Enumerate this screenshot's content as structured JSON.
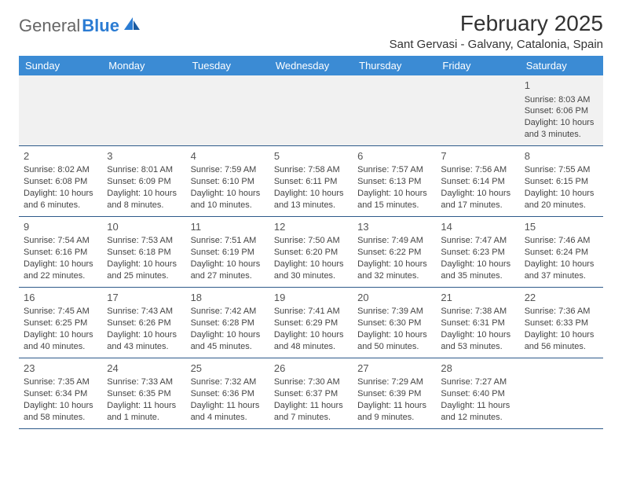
{
  "logo": {
    "text1": "General",
    "text2": "Blue"
  },
  "title": "February 2025",
  "location": "Sant Gervasi - Galvany, Catalonia, Spain",
  "dayHeaders": [
    "Sunday",
    "Monday",
    "Tuesday",
    "Wednesday",
    "Thursday",
    "Friday",
    "Saturday"
  ],
  "colors": {
    "headerBg": "#3b8bd4",
    "headerText": "#ffffff",
    "rule": "#2e5a8a",
    "firstRowBg": "#f1f1f1",
    "text": "#444444",
    "logoAccent": "#2b7cd3"
  },
  "weeks": [
    [
      null,
      null,
      null,
      null,
      null,
      null,
      {
        "n": "1",
        "sunrise": "8:03 AM",
        "sunset": "6:06 PM",
        "daylight": "10 hours and 3 minutes."
      }
    ],
    [
      {
        "n": "2",
        "sunrise": "8:02 AM",
        "sunset": "6:08 PM",
        "daylight": "10 hours and 6 minutes."
      },
      {
        "n": "3",
        "sunrise": "8:01 AM",
        "sunset": "6:09 PM",
        "daylight": "10 hours and 8 minutes."
      },
      {
        "n": "4",
        "sunrise": "7:59 AM",
        "sunset": "6:10 PM",
        "daylight": "10 hours and 10 minutes."
      },
      {
        "n": "5",
        "sunrise": "7:58 AM",
        "sunset": "6:11 PM",
        "daylight": "10 hours and 13 minutes."
      },
      {
        "n": "6",
        "sunrise": "7:57 AM",
        "sunset": "6:13 PM",
        "daylight": "10 hours and 15 minutes."
      },
      {
        "n": "7",
        "sunrise": "7:56 AM",
        "sunset": "6:14 PM",
        "daylight": "10 hours and 17 minutes."
      },
      {
        "n": "8",
        "sunrise": "7:55 AM",
        "sunset": "6:15 PM",
        "daylight": "10 hours and 20 minutes."
      }
    ],
    [
      {
        "n": "9",
        "sunrise": "7:54 AM",
        "sunset": "6:16 PM",
        "daylight": "10 hours and 22 minutes."
      },
      {
        "n": "10",
        "sunrise": "7:53 AM",
        "sunset": "6:18 PM",
        "daylight": "10 hours and 25 minutes."
      },
      {
        "n": "11",
        "sunrise": "7:51 AM",
        "sunset": "6:19 PM",
        "daylight": "10 hours and 27 minutes."
      },
      {
        "n": "12",
        "sunrise": "7:50 AM",
        "sunset": "6:20 PM",
        "daylight": "10 hours and 30 minutes."
      },
      {
        "n": "13",
        "sunrise": "7:49 AM",
        "sunset": "6:22 PM",
        "daylight": "10 hours and 32 minutes."
      },
      {
        "n": "14",
        "sunrise": "7:47 AM",
        "sunset": "6:23 PM",
        "daylight": "10 hours and 35 minutes."
      },
      {
        "n": "15",
        "sunrise": "7:46 AM",
        "sunset": "6:24 PM",
        "daylight": "10 hours and 37 minutes."
      }
    ],
    [
      {
        "n": "16",
        "sunrise": "7:45 AM",
        "sunset": "6:25 PM",
        "daylight": "10 hours and 40 minutes."
      },
      {
        "n": "17",
        "sunrise": "7:43 AM",
        "sunset": "6:26 PM",
        "daylight": "10 hours and 43 minutes."
      },
      {
        "n": "18",
        "sunrise": "7:42 AM",
        "sunset": "6:28 PM",
        "daylight": "10 hours and 45 minutes."
      },
      {
        "n": "19",
        "sunrise": "7:41 AM",
        "sunset": "6:29 PM",
        "daylight": "10 hours and 48 minutes."
      },
      {
        "n": "20",
        "sunrise": "7:39 AM",
        "sunset": "6:30 PM",
        "daylight": "10 hours and 50 minutes."
      },
      {
        "n": "21",
        "sunrise": "7:38 AM",
        "sunset": "6:31 PM",
        "daylight": "10 hours and 53 minutes."
      },
      {
        "n": "22",
        "sunrise": "7:36 AM",
        "sunset": "6:33 PM",
        "daylight": "10 hours and 56 minutes."
      }
    ],
    [
      {
        "n": "23",
        "sunrise": "7:35 AM",
        "sunset": "6:34 PM",
        "daylight": "10 hours and 58 minutes."
      },
      {
        "n": "24",
        "sunrise": "7:33 AM",
        "sunset": "6:35 PM",
        "daylight": "11 hours and 1 minute."
      },
      {
        "n": "25",
        "sunrise": "7:32 AM",
        "sunset": "6:36 PM",
        "daylight": "11 hours and 4 minutes."
      },
      {
        "n": "26",
        "sunrise": "7:30 AM",
        "sunset": "6:37 PM",
        "daylight": "11 hours and 7 minutes."
      },
      {
        "n": "27",
        "sunrise": "7:29 AM",
        "sunset": "6:39 PM",
        "daylight": "11 hours and 9 minutes."
      },
      {
        "n": "28",
        "sunrise": "7:27 AM",
        "sunset": "6:40 PM",
        "daylight": "11 hours and 12 minutes."
      },
      null
    ]
  ],
  "labels": {
    "sunrise": "Sunrise:",
    "sunset": "Sunset:",
    "daylight": "Daylight:"
  }
}
